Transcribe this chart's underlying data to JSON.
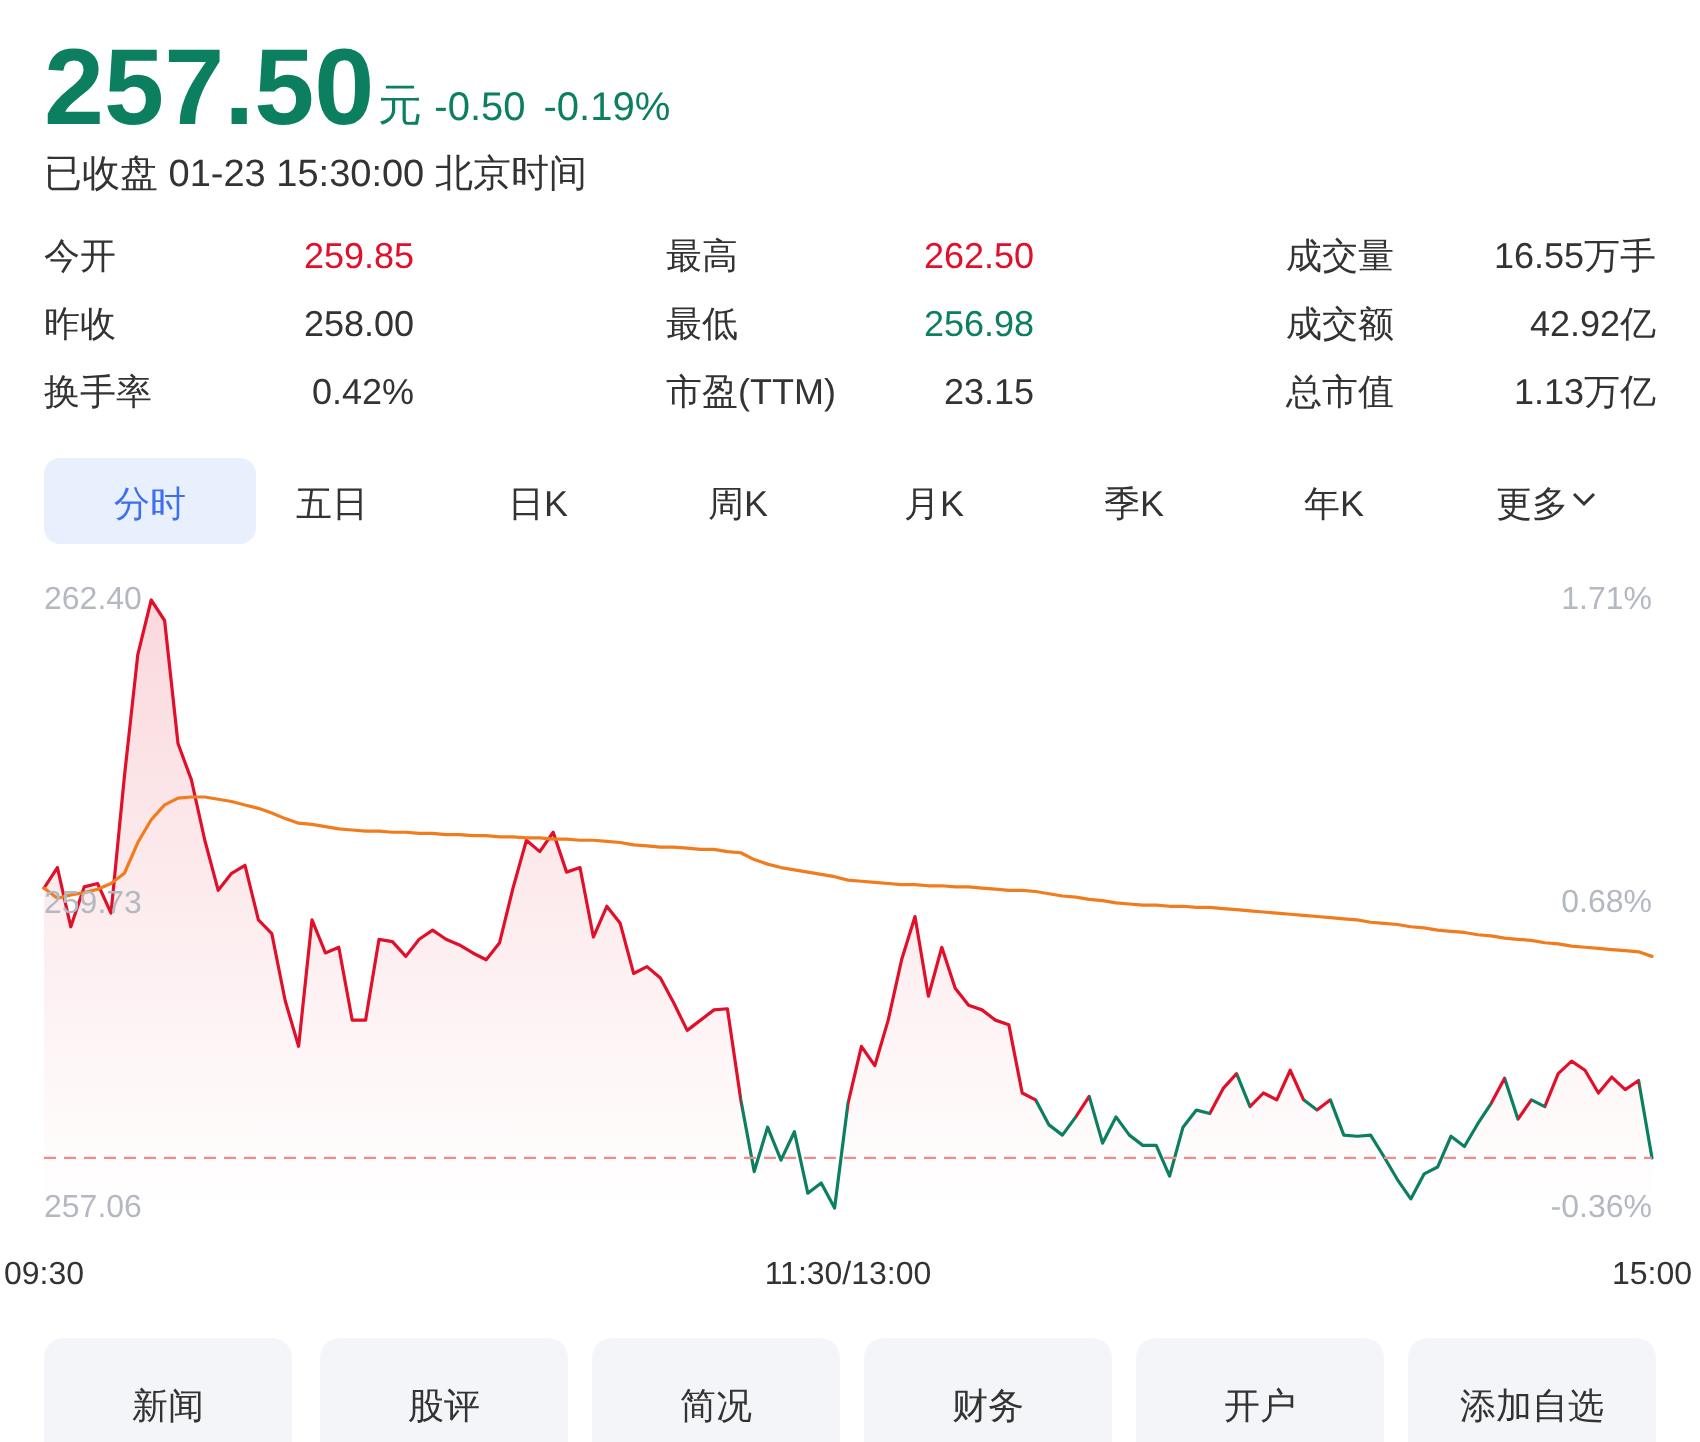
{
  "chart_data": [
    {
      "type": "other",
      "title": "257.50",
      "subtitle": "已收盘 01-23 15:30:00 北京时间",
      "annotations": [
        "元",
        "-0.50",
        "-0.19%",
        "今开",
        "259.85",
        "最高",
        "262.50",
        "成交量",
        "16.55万手",
        "昨收",
        "258.00",
        "最低",
        "256.98",
        "成交额",
        "42.92亿",
        "换手率",
        "0.42%",
        "市盈(TTM)",
        "23.15",
        "总市值",
        "1.13万亿",
        "分时",
        "五日",
        "日K",
        "周K",
        "月K",
        "季K",
        "年K",
        "更多"
      ]
    },
    {
      "type": "line",
      "categories": [
        "09:30",
        null,
        null,
        null,
        null,
        null,
        null,
        null,
        null,
        null,
        null,
        null,
        null,
        null,
        null,
        null,
        null,
        null,
        null,
        null,
        null,
        null,
        null,
        null,
        null,
        null,
        null,
        null,
        null,
        null,
        null,
        null,
        null,
        null,
        null,
        null,
        null,
        null,
        null,
        null,
        null,
        null,
        null,
        null,
        null,
        null,
        null,
        null,
        null,
        null,
        null,
        null,
        null,
        null,
        null,
        null,
        null,
        null,
        null,
        null,
        "11:30/13:00",
        null,
        null,
        null,
        null,
        null,
        null,
        null,
        null,
        null,
        null,
        null,
        null,
        null,
        null,
        null,
        null,
        null,
        null,
        null,
        null,
        null,
        null,
        null,
        null,
        null,
        null,
        null,
        null,
        null,
        null,
        null,
        null,
        null,
        null,
        null,
        null,
        null,
        null,
        null,
        null,
        null,
        null,
        null,
        null,
        null,
        null,
        null,
        null,
        null,
        null,
        null,
        null,
        null,
        null,
        null,
        null,
        null,
        null,
        null,
        "15:00"
      ],
      "ylim": [
        257.06,
        262.4
      ],
      "yticks": [
        {
          "value": 262.4,
          "label": "262.40"
        },
        {
          "value": 259.73,
          "label": "259.73"
        },
        {
          "value": 257.06,
          "label": "257.06"
        }
      ],
      "y2lim": [
        -0.36,
        1.71
      ],
      "y2ticks": [
        {
          "value": 1.71,
          "label": "1.71%"
        },
        {
          "value": 0.68,
          "label": "0.68%"
        },
        {
          "value": -0.36,
          "label": "-0.36%"
        }
      ],
      "ref_lines": [
        {
          "axis": "y",
          "value": 257.5,
          "color": "#f28b8b",
          "line_style": "dashed"
        }
      ],
      "series": [
        {
          "type": "area",
          "color": "#e0102a",
          "values": [
            259.87,
            260.05,
            259.53,
            259.88,
            259.91,
            259.65,
            260.85,
            261.92,
            262.4,
            262.22,
            261.14,
            260.82,
            260.29,
            259.85,
            260.0,
            260.07,
            259.59,
            259.47,
            258.88,
            258.48,
            259.59,
            259.3,
            259.35,
            258.71,
            258.71,
            259.42,
            259.4,
            259.27,
            259.42,
            259.5,
            259.42,
            259.37,
            259.3,
            259.24,
            259.39,
            259.87,
            260.29,
            260.19,
            260.36,
            260.01,
            260.05,
            259.44,
            259.71,
            259.56,
            259.12,
            259.18,
            259.08,
            258.86,
            258.62,
            258.71,
            258.8,
            258.81,
            258.01,
            257.38,
            257.77,
            257.48,
            257.73,
            257.19,
            257.28,
            257.06,
            257.98,
            258.48,
            258.31,
            258.71,
            259.24,
            259.62,
            258.92,
            259.35,
            258.99,
            258.84,
            258.8,
            258.71,
            258.67,
            258.07,
            258.01,
            257.79,
            257.7,
            257.86,
            258.04,
            257.63,
            257.86,
            257.7,
            257.61,
            257.61,
            257.34,
            257.77,
            257.92,
            257.89,
            258.11,
            258.24,
            257.95,
            258.07,
            258.01,
            258.27,
            258.01,
            257.92,
            258.01,
            257.7,
            257.69,
            257.7,
            257.51,
            257.31,
            257.14,
            257.36,
            257.42,
            257.69,
            257.6,
            257.8,
            257.98,
            258.2,
            257.84,
            258.01,
            257.95,
            258.24,
            258.35,
            258.27,
            258.07,
            258.21,
            258.1,
            258.18,
            257.5
          ],
          "colors": [
            "#e0102a",
            "#e0102a",
            "#e0102a",
            "#e0102a",
            "#e0102a",
            "#e0102a",
            "#e0102a",
            "#e0102a",
            "#e0102a",
            "#e0102a",
            "#e0102a",
            "#e0102a",
            "#e0102a",
            "#e0102a",
            "#e0102a",
            "#e0102a",
            "#e0102a",
            "#e0102a",
            "#e0102a",
            "#e0102a",
            "#e0102a",
            "#e0102a",
            "#e0102a",
            "#e0102a",
            "#e0102a",
            "#e0102a",
            "#e0102a",
            "#e0102a",
            "#e0102a",
            "#e0102a",
            "#e0102a",
            "#e0102a",
            "#e0102a",
            "#e0102a",
            "#e0102a",
            "#e0102a",
            "#e0102a",
            "#e0102a",
            "#e0102a",
            "#e0102a",
            "#e0102a",
            "#e0102a",
            "#e0102a",
            "#e0102a",
            "#e0102a",
            "#e0102a",
            "#e0102a",
            "#e0102a",
            "#e0102a",
            "#e0102a",
            "#e0102a",
            "#e0102a",
            "#e0102a",
            "#0b7f5f",
            "#0b7f5f",
            "#0b7f5f",
            "#0b7f5f",
            "#0b7f5f",
            "#0b7f5f",
            "#0b7f5f",
            "#0b7f5f",
            "#e0102a",
            "#e0102a",
            "#e0102a",
            "#e0102a",
            "#e0102a",
            "#e0102a",
            "#e0102a",
            "#e0102a",
            "#e0102a",
            "#e0102a",
            "#e0102a",
            "#e0102a",
            "#e0102a",
            "#e0102a",
            "#0b7f5f",
            "#0b7f5f",
            "#0b7f5f",
            "#e0102a",
            "#0b7f5f",
            "#0b7f5f",
            "#0b7f5f",
            "#0b7f5f",
            "#0b7f5f",
            "#0b7f5f",
            "#0b7f5f",
            "#0b7f5f",
            "#0b7f5f",
            "#e0102a",
            "#e0102a",
            "#0b7f5f",
            "#e0102a",
            "#e0102a",
            "#e0102a",
            "#e0102a",
            "#0b7f5f",
            "#e0102a",
            "#0b7f5f",
            "#0b7f5f",
            "#0b7f5f",
            "#0b7f5f",
            "#0b7f5f",
            "#0b7f5f",
            "#0b7f5f",
            "#0b7f5f",
            "#0b7f5f",
            "#0b7f5f",
            "#0b7f5f",
            "#0b7f5f",
            "#e0102a",
            "#0b7f5f",
            "#e0102a",
            "#0b7f5f",
            "#e0102a",
            "#e0102a",
            "#e0102a",
            "#e0102a",
            "#e0102a",
            "#e0102a",
            "#e0102a",
            "#0b7f5f"
          ]
        },
        {
          "type": "line",
          "color": "#f07c1e",
          "values": [
            259.87,
            259.78,
            259.81,
            259.83,
            259.86,
            259.91,
            260.0,
            260.27,
            260.47,
            260.6,
            260.66,
            260.67,
            260.67,
            260.65,
            260.63,
            260.6,
            260.57,
            260.53,
            260.48,
            260.44,
            260.43,
            260.41,
            260.39,
            260.38,
            260.37,
            260.37,
            260.36,
            260.36,
            260.35,
            260.35,
            260.34,
            260.34,
            260.33,
            260.33,
            260.32,
            260.32,
            260.31,
            260.31,
            260.3,
            260.3,
            260.29,
            260.29,
            260.28,
            260.27,
            260.25,
            260.24,
            260.23,
            260.23,
            260.22,
            260.21,
            260.21,
            260.19,
            260.18,
            260.12,
            260.08,
            260.05,
            260.03,
            260.01,
            259.99,
            259.97,
            259.94,
            259.93,
            259.92,
            259.91,
            259.9,
            259.9,
            259.89,
            259.89,
            259.88,
            259.88,
            259.87,
            259.86,
            259.85,
            259.85,
            259.84,
            259.82,
            259.8,
            259.79,
            259.77,
            259.76,
            259.74,
            259.73,
            259.72,
            259.72,
            259.71,
            259.71,
            259.7,
            259.7,
            259.69,
            259.68,
            259.67,
            259.66,
            259.65,
            259.64,
            259.63,
            259.62,
            259.61,
            259.6,
            259.59,
            259.57,
            259.56,
            259.55,
            259.53,
            259.52,
            259.5,
            259.49,
            259.48,
            259.46,
            259.45,
            259.43,
            259.42,
            259.41,
            259.39,
            259.38,
            259.36,
            259.35,
            259.34,
            259.33,
            259.32,
            259.31,
            259.27
          ]
        }
      ]
    },
    {
      "type": "other",
      "annotations": [
        "新闻",
        "股评",
        "简况",
        "财务",
        "开户",
        "添加自选"
      ]
    }
  ]
}
